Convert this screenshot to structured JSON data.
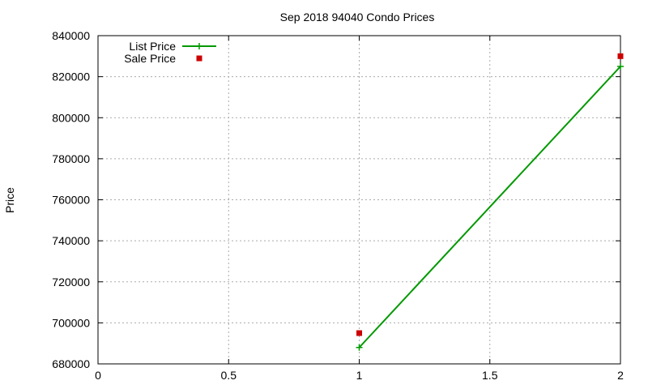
{
  "chart_data": {
    "type": "line",
    "title": "Sep 2018 94040 Condo Prices",
    "xlabel": "",
    "ylabel": "Price",
    "xlim": [
      0,
      2
    ],
    "ylim": [
      680000,
      840000
    ],
    "x_ticks": [
      {
        "value": 0,
        "label": "0"
      },
      {
        "value": 0.5,
        "label": "0.5"
      },
      {
        "value": 1,
        "label": "1"
      },
      {
        "value": 1.5,
        "label": "1.5"
      },
      {
        "value": 2,
        "label": "2"
      }
    ],
    "y_ticks": [
      {
        "value": 680000,
        "label": "680000"
      },
      {
        "value": 700000,
        "label": "700000"
      },
      {
        "value": 720000,
        "label": "720000"
      },
      {
        "value": 740000,
        "label": "740000"
      },
      {
        "value": 760000,
        "label": "760000"
      },
      {
        "value": 780000,
        "label": "780000"
      },
      {
        "value": 800000,
        "label": "800000"
      },
      {
        "value": 820000,
        "label": "820000"
      },
      {
        "value": 840000,
        "label": "840000"
      }
    ],
    "grid": true,
    "legend_position": "top-left",
    "series": [
      {
        "name": "List Price",
        "kind": "linespoints",
        "marker": "plus",
        "color": "#009900",
        "points": [
          {
            "x": 1,
            "y": 688000
          },
          {
            "x": 2,
            "y": 825000
          }
        ]
      },
      {
        "name": "Sale Price",
        "kind": "points",
        "marker": "square",
        "color": "#cc0000",
        "points": [
          {
            "x": 1,
            "y": 695000
          },
          {
            "x": 2,
            "y": 830000
          }
        ]
      }
    ]
  }
}
